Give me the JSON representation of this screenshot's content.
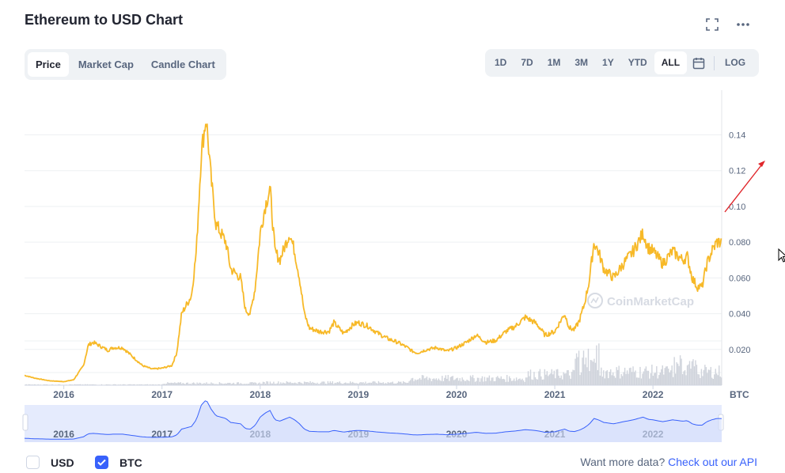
{
  "title": "Ethereum to USD Chart",
  "tabs_left": [
    {
      "label": "Price",
      "active": true
    },
    {
      "label": "Market Cap",
      "active": false
    },
    {
      "label": "Candle Chart",
      "active": false
    }
  ],
  "tabs_right": [
    {
      "label": "1D",
      "active": false
    },
    {
      "label": "7D",
      "active": false
    },
    {
      "label": "1M",
      "active": false
    },
    {
      "label": "3M",
      "active": false
    },
    {
      "label": "1Y",
      "active": false
    },
    {
      "label": "YTD",
      "active": false
    },
    {
      "label": "ALL",
      "active": true
    }
  ],
  "log_label": "LOG",
  "legend": [
    {
      "label": "USD",
      "checked": false
    },
    {
      "label": "BTC",
      "checked": true
    }
  ],
  "api_prompt": "Want more data?",
  "api_link": "Check out our API",
  "watermark": "CoinMarketCap",
  "colors": {
    "line": "#f7b928",
    "accent": "#3861fb",
    "volume": "#d0d4dc",
    "nav_fill": "#e5ebfd",
    "arrow": "#e0262b"
  },
  "chart_data": {
    "type": "line",
    "series": [
      {
        "name": "BTC",
        "x": [
          2015.6,
          2015.7,
          2015.85,
          2016.0,
          2016.1,
          2016.2,
          2016.25,
          2016.3,
          2016.4,
          2016.45,
          2016.5,
          2016.6,
          2016.7,
          2016.8,
          2016.9,
          2017.0,
          2017.1,
          2017.15,
          2017.2,
          2017.25,
          2017.3,
          2017.35,
          2017.4,
          2017.45,
          2017.5,
          2017.55,
          2017.6,
          2017.65,
          2017.7,
          2017.8,
          2017.85,
          2017.9,
          2017.95,
          2018.0,
          2018.05,
          2018.1,
          2018.15,
          2018.2,
          2018.3,
          2018.35,
          2018.4,
          2018.45,
          2018.5,
          2018.6,
          2018.7,
          2018.75,
          2018.85,
          2018.95,
          2019.0,
          2019.1,
          2019.2,
          2019.3,
          2019.4,
          2019.5,
          2019.55,
          2019.6,
          2019.7,
          2019.8,
          2019.9,
          2020.0,
          2020.1,
          2020.2,
          2020.3,
          2020.4,
          2020.5,
          2020.6,
          2020.7,
          2020.8,
          2020.85,
          2020.9,
          2021.0,
          2021.05,
          2021.1,
          2021.15,
          2021.2,
          2021.25,
          2021.3,
          2021.35,
          2021.4,
          2021.45,
          2021.5,
          2021.6,
          2021.7,
          2021.8,
          2021.9,
          2021.95,
          2022.0,
          2022.1,
          2022.2,
          2022.3,
          2022.35,
          2022.4,
          2022.45,
          2022.5,
          2022.55,
          2022.6,
          2022.65,
          2022.7
        ],
        "y": [
          0.0055,
          0.004,
          0.0025,
          0.002,
          0.003,
          0.011,
          0.0225,
          0.024,
          0.021,
          0.0195,
          0.021,
          0.021,
          0.016,
          0.011,
          0.009,
          0.0095,
          0.011,
          0.018,
          0.04,
          0.045,
          0.05,
          0.075,
          0.13,
          0.15,
          0.115,
          0.09,
          0.085,
          0.08,
          0.065,
          0.06,
          0.042,
          0.04,
          0.055,
          0.085,
          0.1,
          0.11,
          0.075,
          0.07,
          0.085,
          0.075,
          0.06,
          0.04,
          0.032,
          0.03,
          0.03,
          0.035,
          0.029,
          0.034,
          0.035,
          0.033,
          0.029,
          0.026,
          0.024,
          0.021,
          0.019,
          0.018,
          0.02,
          0.021,
          0.019,
          0.021,
          0.024,
          0.028,
          0.024,
          0.025,
          0.03,
          0.033,
          0.038,
          0.035,
          0.032,
          0.028,
          0.03,
          0.035,
          0.04,
          0.032,
          0.031,
          0.036,
          0.045,
          0.058,
          0.08,
          0.074,
          0.065,
          0.06,
          0.068,
          0.075,
          0.085,
          0.077,
          0.075,
          0.068,
          0.075,
          0.07,
          0.072,
          0.06,
          0.055,
          0.055,
          0.068,
          0.075,
          0.08,
          0.08
        ]
      }
    ],
    "x_ticks": [
      "2016",
      "2017",
      "2018",
      "2019",
      "2020",
      "2021",
      "2022"
    ],
    "y_ticks": [
      "0.020",
      "0.040",
      "0.060",
      "0.080",
      "0.10",
      "0.12",
      "0.14"
    ],
    "y_unit": "BTC",
    "ylim": [
      0,
      0.165
    ],
    "grid": true
  }
}
